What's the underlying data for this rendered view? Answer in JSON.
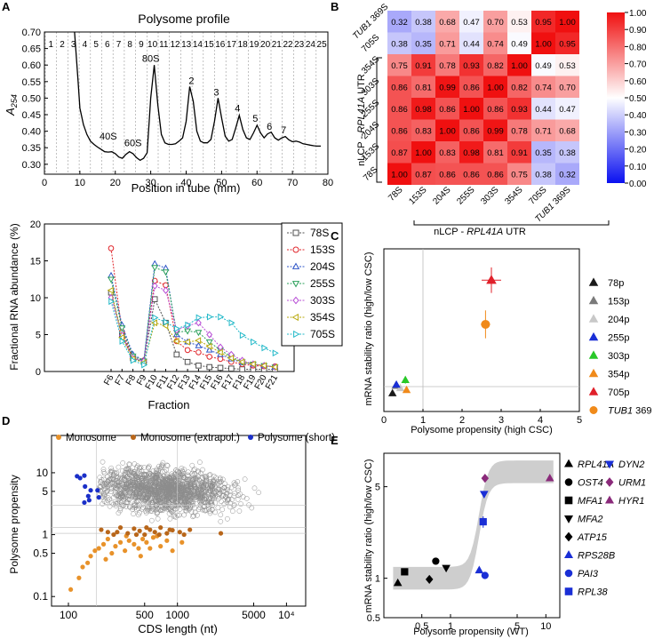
{
  "chart_data": [
    {
      "panel": "A",
      "type": "line",
      "title": "Polysome profile",
      "xlabel": "Position in tube (mm)",
      "ylabel": "A254",
      "xlim": [
        0,
        80
      ],
      "ylim": [
        0.27,
        0.7
      ],
      "xticks": [
        "0",
        "10",
        "20",
        "30",
        "40",
        "50",
        "60",
        "70",
        "80"
      ],
      "yticks": [
        "0.30",
        "0.35",
        "0.40",
        "0.45",
        "0.50",
        "0.55",
        "0.60",
        "0.65",
        "0.70"
      ],
      "fraction_labels": [
        "1",
        "2",
        "3",
        "4",
        "5",
        "6",
        "7",
        "8",
        "9",
        "10",
        "11",
        "12",
        "13",
        "14",
        "15",
        "16",
        "17",
        "18",
        "19",
        "20",
        "21",
        "22",
        "23",
        "24",
        "25"
      ],
      "peak_labels": [
        {
          "label": "40S",
          "x": 18,
          "y": 0.375
        },
        {
          "label": "60S",
          "x": 25,
          "y": 0.355
        },
        {
          "label": "80S",
          "x": 30,
          "y": 0.61
        },
        {
          "label": "2",
          "x": 41.5,
          "y": 0.543
        },
        {
          "label": "3",
          "x": 48.5,
          "y": 0.508
        },
        {
          "label": "4",
          "x": 54.5,
          "y": 0.46
        },
        {
          "label": "5",
          "x": 59.5,
          "y": 0.428
        },
        {
          "label": "6",
          "x": 63.5,
          "y": 0.404
        },
        {
          "label": "7",
          "x": 67.5,
          "y": 0.394
        }
      ],
      "x": [
        8.5,
        9.5,
        10,
        11,
        12,
        13,
        14,
        15,
        16,
        17,
        18,
        19,
        20,
        21,
        22,
        23,
        24,
        25,
        26,
        27,
        28,
        29,
        30,
        31,
        32,
        33,
        34,
        35,
        36,
        37,
        38,
        39,
        40,
        41,
        42,
        43,
        44,
        45,
        46,
        47,
        48,
        49,
        50,
        51,
        52,
        53,
        54,
        55,
        56,
        57,
        58,
        59,
        60,
        61,
        62,
        63,
        64,
        65,
        66,
        67,
        68,
        69,
        70,
        71,
        72,
        73,
        74,
        75,
        76,
        77,
        78
      ],
      "values": [
        0.7,
        0.55,
        0.47,
        0.42,
        0.39,
        0.37,
        0.36,
        0.352,
        0.345,
        0.338,
        0.337,
        0.338,
        0.332,
        0.322,
        0.318,
        0.33,
        0.338,
        0.332,
        0.32,
        0.312,
        0.318,
        0.335,
        0.5,
        0.6,
        0.48,
        0.39,
        0.365,
        0.36,
        0.36,
        0.362,
        0.37,
        0.38,
        0.43,
        0.535,
        0.49,
        0.4,
        0.37,
        0.365,
        0.365,
        0.375,
        0.43,
        0.5,
        0.44,
        0.385,
        0.37,
        0.375,
        0.41,
        0.448,
        0.405,
        0.38,
        0.375,
        0.395,
        0.418,
        0.395,
        0.38,
        0.392,
        0.397,
        0.38,
        0.373,
        0.38,
        0.384,
        0.374,
        0.368,
        0.37,
        0.367,
        0.362,
        0.36,
        0.358,
        0.356,
        0.355,
        0.355
      ]
    },
    {
      "panel": "A",
      "type": "line",
      "xlabel": "Fraction",
      "ylabel": "Fractional RNA abundance (%)",
      "ylim": [
        0,
        20
      ],
      "yticks": [
        "0",
        "5",
        "10",
        "15",
        "20"
      ],
      "categories": [
        "F6",
        "F7",
        "F8",
        "F9",
        "F10",
        "F11",
        "F12",
        "F13",
        "F14",
        "F15",
        "F16",
        "F17",
        "F18",
        "F19",
        "F20",
        "F21"
      ],
      "series": [
        {
          "name": "78S",
          "color": "#505050",
          "marker": "square",
          "values": [
            10.7,
            5.0,
            1.8,
            1.3,
            9.8,
            6.6,
            2.3,
            1.3,
            0.8,
            0.6,
            0.5,
            0.4,
            0.3,
            0.3,
            0.3,
            0.3
          ]
        },
        {
          "name": "153S",
          "color": "#e0242a",
          "marker": "circle",
          "values": [
            16.7,
            5.4,
            2.0,
            1.5,
            12.3,
            11.7,
            4.1,
            2.9,
            2.6,
            2.0,
            1.7,
            1.3,
            1.0,
            0.8,
            0.7,
            0.7
          ]
        },
        {
          "name": "204S",
          "color": "#2f56c8",
          "marker": "triangle-up",
          "values": [
            13.0,
            6.3,
            2.3,
            1.5,
            14.6,
            14.0,
            5.0,
            4.0,
            3.5,
            2.9,
            2.3,
            1.7,
            1.2,
            1.0,
            0.8,
            0.6
          ]
        },
        {
          "name": "255S",
          "color": "#2aa05a",
          "marker": "triangle-down",
          "values": [
            12.5,
            5.9,
            2.1,
            1.4,
            14.1,
            13.5,
            5.3,
            5.5,
            5.3,
            4.0,
            2.9,
            2.0,
            1.3,
            1.0,
            0.8,
            0.6
          ]
        },
        {
          "name": "303S",
          "color": "#b84fd6",
          "marker": "diamond",
          "values": [
            10.0,
            4.9,
            1.8,
            1.4,
            11.6,
            11.0,
            5.6,
            6.2,
            6.6,
            5.0,
            3.3,
            2.3,
            1.5,
            1.0,
            0.8,
            0.6
          ]
        },
        {
          "name": "354S",
          "color": "#b8a80a",
          "marker": "triangle-left",
          "values": [
            11.0,
            4.6,
            1.7,
            1.2,
            6.6,
            6.2,
            4.1,
            4.0,
            4.2,
            3.4,
            2.6,
            1.8,
            1.3,
            1.0,
            0.8,
            0.6
          ]
        },
        {
          "name": "705S",
          "color": "#20b8c8",
          "marker": "triangle-right",
          "values": [
            9.5,
            4.1,
            1.5,
            0.9,
            7.3,
            6.7,
            5.8,
            6.3,
            7.3,
            7.4,
            7.4,
            6.6,
            4.9,
            4.0,
            3.2,
            2.5
          ]
        }
      ]
    },
    {
      "panel": "B",
      "type": "heatmap",
      "row_labels": [
        "TUB1 369S",
        "705S",
        "354S",
        "303S",
        "255S",
        "204S",
        "153S",
        "78S"
      ],
      "col_labels": [
        "78S",
        "153S",
        "204S",
        "255S",
        "303S",
        "354S",
        "705S",
        "TUB1 369S"
      ],
      "row_group_label": "nLCP - RPL41A UTR",
      "col_group_label": "nLCP - RPL41A UTR",
      "colorbar_ticks": [
        "0.00",
        "0.10",
        "0.20",
        "0.30",
        "0.40",
        "0.50",
        "0.60",
        "0.70",
        "0.80",
        "0.90",
        "1.00"
      ],
      "matrix": [
        [
          0.32,
          0.38,
          0.68,
          0.47,
          0.7,
          0.53,
          0.95,
          1.0
        ],
        [
          0.38,
          0.35,
          0.71,
          0.44,
          0.74,
          0.49,
          1.0,
          0.95
        ],
        [
          0.75,
          0.91,
          0.78,
          0.93,
          0.82,
          1.0,
          0.49,
          0.53
        ],
        [
          0.86,
          0.81,
          0.99,
          0.86,
          1.0,
          0.82,
          0.74,
          0.7
        ],
        [
          0.86,
          0.98,
          0.86,
          1.0,
          0.86,
          0.93,
          0.44,
          0.47
        ],
        [
          0.86,
          0.83,
          1.0,
          0.86,
          0.99,
          0.78,
          0.71,
          0.68
        ],
        [
          0.87,
          1.0,
          0.83,
          0.98,
          0.81,
          0.91,
          0.35,
          0.38
        ],
        [
          1.0,
          0.87,
          0.86,
          0.86,
          0.86,
          0.75,
          0.38,
          0.32
        ]
      ],
      "display": [
        [
          "0.32",
          "0.38",
          "0.68",
          "0.47",
          "0.70",
          "0.53",
          "0.95",
          "1.00"
        ],
        [
          "0.38",
          "0.35",
          "0.71",
          "0.44",
          "0.74",
          "0.49",
          "1.00",
          "0.95"
        ],
        [
          "0.75",
          "0.91",
          "0.78",
          "0.93",
          "0.82",
          "1.00",
          "0.49",
          "0.53"
        ],
        [
          "0.86",
          "0.81",
          "0.99",
          "0.86",
          "1.00",
          "0.82",
          "0.74",
          "0.70"
        ],
        [
          "0.86",
          "0.98",
          "0.86",
          "1.00",
          "0.86",
          "0.93",
          "0.44",
          "0.47"
        ],
        [
          "0.86",
          "0.83",
          "1.00",
          "0.86",
          "0.99",
          "0.78",
          "0.71",
          "0.68"
        ],
        [
          "0.87",
          "1.00",
          "0.83",
          "0.98",
          "0.81",
          "0.91",
          "0.35",
          "0.38"
        ],
        [
          "1.00",
          "0.87",
          "0.86",
          "0.86",
          "0.86",
          "0.75",
          "0.38",
          "0.32"
        ]
      ]
    },
    {
      "panel": "C",
      "type": "scatter",
      "xlabel": "Polysome propensity (high CSC)",
      "ylabel": "mRNA stability ratio (high/low CSC)",
      "xlim": [
        0,
        5
      ],
      "ylim": [
        0,
        7
      ],
      "xticks": [
        "0",
        "1",
        "2",
        "3",
        "4",
        "5"
      ],
      "points": [
        {
          "name": "78p",
          "color": "#1a1a1a",
          "marker": "triangle-up",
          "x": 0.22,
          "y": 0.78,
          "xerr": 0.05,
          "yerr": 0.1
        },
        {
          "name": "153p",
          "color": "#7a7a7a",
          "marker": "triangle-up",
          "x": 0.3,
          "y": 1.1,
          "xerr": 0.05,
          "yerr": 0.12
        },
        {
          "name": "204p",
          "color": "#c8c8c8",
          "marker": "triangle-up",
          "x": 0.42,
          "y": 1.0,
          "xerr": 0.05,
          "yerr": 0.12
        },
        {
          "name": "255p",
          "color": "#1a2fd6",
          "marker": "triangle-up",
          "x": 0.32,
          "y": 1.15,
          "xerr": 0.05,
          "yerr": 0.12
        },
        {
          "name": "303p",
          "color": "#28c828",
          "marker": "triangle-up",
          "x": 0.55,
          "y": 1.35,
          "xerr": 0.05,
          "yerr": 0.15
        },
        {
          "name": "354p",
          "color": "#f08a1a",
          "marker": "triangle-up",
          "x": 0.58,
          "y": 0.92,
          "xerr": 0.05,
          "yerr": 0.1
        },
        {
          "name": "705p",
          "color": "#e0202a",
          "marker": "triangle-up",
          "x": 2.75,
          "y": 5.65,
          "xerr": 0.25,
          "yerr": 0.55
        },
        {
          "name": "TUB1 369",
          "color": "#f08a1a",
          "marker": "circle",
          "x": 2.6,
          "y": 3.75,
          "xerr": 0.12,
          "yerr": 0.6
        }
      ]
    },
    {
      "panel": "D",
      "type": "scatter",
      "xlabel": "CDS length (nt)",
      "ylabel": "Polysome propensity",
      "xscale": "log",
      "yscale": "log",
      "xlim": [
        70,
        15000
      ],
      "ylim": [
        0.07,
        40
      ],
      "xticks": [
        "100",
        "500",
        "1000",
        "5000",
        "10⁴"
      ],
      "yticks": [
        "0.1",
        "0.5",
        "1",
        "5",
        "10"
      ],
      "legend": [
        {
          "name": "Monosome",
          "color": "#e8922a"
        },
        {
          "name": "Monosome (extrapol.)",
          "color": "#b8661a"
        },
        {
          "name": "Polysome (short)",
          "color": "#1a2fc8"
        }
      ],
      "polysome_short": [
        [
          120,
          8.8
        ],
        [
          128,
          8.2
        ],
        [
          140,
          9.0
        ],
        [
          142,
          6.0
        ],
        [
          152,
          4.2
        ],
        [
          160,
          5.2
        ],
        [
          185,
          5.2
        ],
        [
          140,
          3.3
        ],
        [
          155,
          3.6
        ],
        [
          190,
          4.0
        ]
      ],
      "monosome_extrapol": [
        [
          200,
          1.2
        ],
        [
          230,
          1.1
        ],
        [
          260,
          1.0
        ],
        [
          300,
          1.3
        ],
        [
          350,
          1.05
        ],
        [
          400,
          1.25
        ],
        [
          450,
          1.15
        ],
        [
          500,
          1.0
        ],
        [
          560,
          1.2
        ],
        [
          620,
          1.1
        ],
        [
          700,
          1.3
        ],
        [
          800,
          1.05
        ],
        [
          900,
          1.18
        ],
        [
          1050,
          1.1
        ],
        [
          1300,
          1.2
        ],
        [
          2500,
          1.05
        ],
        [
          280,
          1.1
        ],
        [
          420,
          1.0
        ],
        [
          520,
          1.3
        ],
        [
          680,
          1.0
        ],
        [
          850,
          1.2
        ],
        [
          1150,
          1.0
        ]
      ],
      "monosome": [
        [
          105,
          0.13
        ],
        [
          125,
          0.2
        ],
        [
          135,
          0.3
        ],
        [
          150,
          0.35
        ],
        [
          160,
          0.45
        ],
        [
          175,
          0.55
        ],
        [
          190,
          0.6
        ],
        [
          210,
          0.7
        ],
        [
          230,
          0.85
        ],
        [
          250,
          0.5
        ],
        [
          270,
          0.65
        ],
        [
          300,
          0.75
        ],
        [
          330,
          0.55
        ],
        [
          360,
          0.8
        ],
        [
          400,
          0.7
        ],
        [
          440,
          0.6
        ],
        [
          480,
          0.85
        ],
        [
          520,
          0.75
        ],
        [
          600,
          0.9
        ],
        [
          700,
          0.65
        ],
        [
          800,
          0.8
        ],
        [
          900,
          0.55
        ],
        [
          1100,
          0.75
        ],
        [
          220,
          0.4
        ],
        [
          340,
          0.95
        ],
        [
          460,
          0.45
        ],
        [
          560,
          0.6
        ],
        [
          650,
          0.95
        ]
      ]
    },
    {
      "panel": "E",
      "type": "scatter",
      "xlabel": "Polysome propensity (WT)",
      "ylabel": "mRNA stability ratio (high/low CSC)",
      "xscale": "log",
      "yscale": "log",
      "xlim": [
        0.2,
        14
      ],
      "ylim": [
        0.5,
        9
      ],
      "xticks": [
        "0.5",
        "1",
        "5",
        "10"
      ],
      "yticks": [
        "0.5",
        "1",
        "5"
      ],
      "points": [
        {
          "name": "RPL41A",
          "color": "#000000",
          "marker": "triangle-up",
          "x": 0.28,
          "y": 0.92
        },
        {
          "name": "OST4",
          "color": "#000000",
          "marker": "circle",
          "x": 0.7,
          "y": 1.35
        },
        {
          "name": "MFA1",
          "color": "#000000",
          "marker": "square",
          "x": 0.33,
          "y": 1.12
        },
        {
          "name": "MFA2",
          "color": "#000000",
          "marker": "triangle-down",
          "x": 0.9,
          "y": 1.2
        },
        {
          "name": "ATP15",
          "color": "#000000",
          "marker": "diamond",
          "x": 0.6,
          "y": 0.98
        },
        {
          "name": "RPS28B",
          "color": "#1a2fd6",
          "marker": "triangle-up",
          "x": 2.0,
          "y": 1.15
        },
        {
          "name": "PAI3",
          "color": "#1a2fd6",
          "marker": "circle",
          "x": 2.3,
          "y": 1.05
        },
        {
          "name": "RPL38",
          "color": "#1a2fd6",
          "marker": "square",
          "x": 2.2,
          "y": 2.7
        },
        {
          "name": "DYN2",
          "color": "#1a2fd6",
          "marker": "triangle-down",
          "x": 2.25,
          "y": 4.4
        },
        {
          "name": "URM1",
          "color": "#8a2a7a",
          "marker": "diamond",
          "x": 2.3,
          "y": 5.8
        },
        {
          "name": "HYR1",
          "color": "#8a2a7a",
          "marker": "triangle-up",
          "x": 11,
          "y": 5.8
        }
      ]
    }
  ],
  "panel_labels": [
    "A",
    "B",
    "C",
    "D",
    "E"
  ]
}
